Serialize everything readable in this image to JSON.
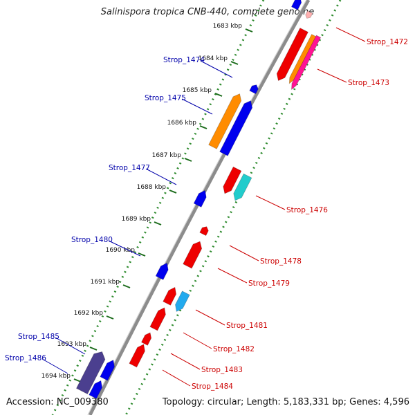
{
  "title": "Salinispora tropica CNB-440, complete genome",
  "accession": "Accession: NC_009380",
  "topology": "Topology: circular; Length: 5,183,331 bp; Genes: 4,596",
  "colors": {
    "backbone": "#8c8c8c",
    "dotted_track": "#2e8b2e",
    "tick": "#1a6b1a",
    "forward_label": "#0000aa",
    "reverse_label": "#cc0000",
    "blue": "#0000ee",
    "red": "#ee0000",
    "orange": "#ff8c00",
    "cyan": "#22cccc",
    "magenta": "#ff1493",
    "purple": "#4b3f8f",
    "light_blue": "#22aaee"
  },
  "scale_labels": [
    "1683 kbp",
    "1684 kbp",
    "1685 kbp",
    "1686 kbp",
    "1687 kbp",
    "1688 kbp",
    "1689 kbp",
    "1690 kbp",
    "1691 kbp",
    "1692 kbp",
    "1693 kbp",
    "1694 kbp"
  ],
  "left_labels": [
    "Strop_1474",
    "Strop_1475",
    "Strop_1477",
    "Strop_1480",
    "Strop_1485",
    "Strop_1486"
  ],
  "right_labels": [
    "Strop_1472",
    "Strop_1473",
    "Strop_1476",
    "Strop_1478",
    "Strop_1479",
    "Strop_1481",
    "Strop_1482",
    "Strop_1483",
    "Strop_1484"
  ]
}
